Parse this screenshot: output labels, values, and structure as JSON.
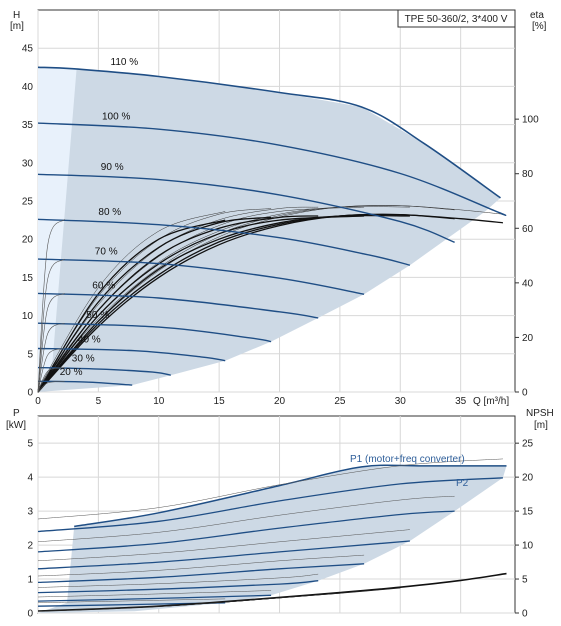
{
  "chart_data": [
    {
      "type": "line",
      "title": "TPE 50-360/2, 3*400 V",
      "xlabel": "Q [m³/h]",
      "ylabel": "H [m]",
      "ylabel_unit_top": "H",
      "ylabel_unit_bottom": "[m]",
      "y2label_top": "eta",
      "y2label_bottom": "[%]",
      "xlim": [
        0,
        39.5
      ],
      "ylim": [
        0,
        50
      ],
      "y2lim": [
        0,
        140
      ],
      "x_ticks": [
        "0",
        "5",
        "10",
        "15",
        "20",
        "25",
        "30",
        "35"
      ],
      "y_ticks": [
        "0",
        "5",
        "10",
        "15",
        "20",
        "25",
        "30",
        "35",
        "40",
        "45"
      ],
      "y2_ticks": [
        "0",
        "20",
        "40",
        "60",
        "80",
        "100"
      ],
      "grid": true,
      "speed_labels": [
        "110 %",
        "100 %",
        "90 %",
        "80 %",
        "70 %",
        "60 %",
        "50 %",
        "40 %",
        "30 %",
        "20 %"
      ],
      "series": [
        {
          "label": "110 %",
          "x": [
            0,
            3,
            10,
            20,
            26.8,
            32,
            38.3
          ],
          "y": [
            42.5,
            42.3,
            41.3,
            39.2,
            37.3,
            32.5,
            25.4
          ]
        },
        {
          "label": "100 %",
          "x": [
            0,
            10,
            20,
            30,
            38,
            38.4
          ],
          "y": [
            35.2,
            34.4,
            32.3,
            28.6,
            23.6,
            23.3
          ]
        },
        {
          "label": "90 %",
          "x": [
            0,
            10,
            20,
            30,
            34.5
          ],
          "y": [
            28.5,
            27.8,
            25.8,
            22.3,
            19.6
          ]
        },
        {
          "label": "80 %",
          "x": [
            0,
            10,
            20,
            27.5,
            30.8
          ],
          "y": [
            22.6,
            21.9,
            20.2,
            17.9,
            16.6
          ]
        },
        {
          "label": "70 %",
          "x": [
            0,
            10,
            20,
            27
          ],
          "y": [
            17.4,
            16.8,
            14.9,
            12.8
          ]
        },
        {
          "label": "60 %",
          "x": [
            0,
            10,
            20,
            23.2
          ],
          "y": [
            12.9,
            12.3,
            10.5,
            9.7
          ]
        },
        {
          "label": "50 %",
          "x": [
            0,
            10,
            17.5,
            19.3
          ],
          "y": [
            9.0,
            8.5,
            7.1,
            6.6
          ]
        },
        {
          "label": "40 %",
          "x": [
            0,
            8,
            13.5,
            15.5
          ],
          "y": [
            5.7,
            5.4,
            4.6,
            4.1
          ]
        },
        {
          "label": "30 %",
          "x": [
            0,
            5,
            9.5,
            11
          ],
          "y": [
            3.2,
            3.0,
            2.6,
            2.2
          ]
        },
        {
          "label": "20 %",
          "x": [
            0,
            4,
            7.8
          ],
          "y": [
            1.4,
            1.3,
            0.9
          ]
        }
      ],
      "efficiency_series": [
        {
          "x": [
            0,
            5,
            10,
            15,
            20,
            25,
            30,
            35,
            38.5
          ],
          "y": [
            0,
            24,
            42,
            54,
            61,
            64.5,
            65,
            63.5,
            62
          ]
        },
        {
          "x": [
            0,
            5,
            10,
            15,
            20,
            25,
            30,
            34.5
          ],
          "y": [
            0,
            25,
            43,
            55,
            61.5,
            64.5,
            65,
            63.5
          ]
        },
        {
          "x": [
            0,
            5,
            10,
            15,
            20,
            25,
            30.8
          ],
          "y": [
            0,
            26,
            45,
            56,
            62,
            64.5,
            64.5
          ]
        },
        {
          "x": [
            0,
            5,
            10,
            15,
            20,
            27
          ],
          "y": [
            0,
            28,
            47,
            58,
            63,
            64.5
          ]
        },
        {
          "x": [
            0,
            5,
            10,
            15,
            20,
            23.2
          ],
          "y": [
            0,
            30,
            50,
            60,
            64,
            64.5
          ]
        },
        {
          "x": [
            0,
            5,
            10,
            15,
            19.3
          ],
          "y": [
            0,
            33,
            53,
            62,
            64
          ]
        },
        {
          "x": [
            0,
            5,
            10,
            15.5
          ],
          "y": [
            0,
            36,
            56,
            63
          ]
        }
      ]
    },
    {
      "type": "line",
      "xlabel": "",
      "ylabel_top": "P",
      "ylabel_bottom": "[kW]",
      "y2label_top": "NPSH",
      "y2label_bottom": "[m]",
      "xlim": [
        0,
        39.5
      ],
      "ylim": [
        0,
        5.8
      ],
      "y2lim": [
        0,
        29
      ],
      "y_ticks": [
        "0",
        "1",
        "2",
        "3",
        "4",
        "5"
      ],
      "y2_ticks": [
        "0",
        "5",
        "10",
        "15",
        "20",
        "25"
      ],
      "grid": true,
      "p1_label": "P1 (motor+freq converter)",
      "p2_label": "P2",
      "series": [
        {
          "name": "P1",
          "x": [
            3,
            10,
            20,
            26.8,
            32,
            38.8
          ],
          "y": [
            2.55,
            2.95,
            3.75,
            4.3,
            4.33,
            4.33
          ]
        },
        {
          "name": "P2",
          "x": [
            0,
            10,
            20,
            30,
            38.5
          ],
          "y": [
            2.4,
            2.7,
            3.3,
            3.8,
            3.98
          ]
        },
        {
          "name": "P2",
          "x": [
            0,
            10,
            20,
            30,
            34.5
          ],
          "y": [
            1.8,
            2.05,
            2.5,
            2.9,
            3.0
          ]
        },
        {
          "name": "P2",
          "x": [
            0,
            10,
            20,
            30.8
          ],
          "y": [
            1.3,
            1.5,
            1.8,
            2.12
          ]
        },
        {
          "name": "P2",
          "x": [
            0,
            10,
            20,
            27
          ],
          "y": [
            0.9,
            1.05,
            1.3,
            1.45
          ]
        },
        {
          "name": "P2",
          "x": [
            0,
            10,
            20,
            23.2
          ],
          "y": [
            0.6,
            0.7,
            0.85,
            0.95
          ]
        },
        {
          "name": "P2",
          "x": [
            0,
            10,
            19.3
          ],
          "y": [
            0.35,
            0.43,
            0.52
          ]
        },
        {
          "name": "P2",
          "x": [
            0,
            8,
            15.5
          ],
          "y": [
            0.2,
            0.25,
            0.3
          ]
        }
      ],
      "npsh_series": {
        "x": [
          0,
          5,
          10,
          15,
          20,
          25,
          30,
          35,
          38.8
        ],
        "y": [
          0.3,
          0.6,
          1.0,
          1.6,
          2.3,
          3.0,
          3.8,
          4.8,
          5.8
        ]
      }
    }
  ]
}
